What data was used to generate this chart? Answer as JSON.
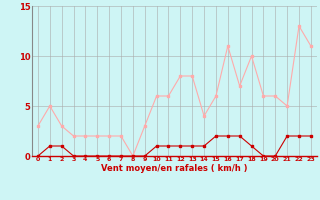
{
  "x": [
    0,
    1,
    2,
    3,
    4,
    5,
    6,
    7,
    8,
    9,
    10,
    11,
    12,
    13,
    14,
    15,
    16,
    17,
    18,
    19,
    20,
    21,
    22,
    23
  ],
  "wind_avg": [
    0,
    1,
    1,
    0,
    0,
    0,
    0,
    0,
    0,
    0,
    1,
    1,
    1,
    1,
    1,
    2,
    2,
    2,
    1,
    0,
    0,
    2,
    2,
    2
  ],
  "wind_gust": [
    3,
    5,
    3,
    2,
    2,
    2,
    2,
    2,
    0,
    3,
    6,
    6,
    8,
    8,
    4,
    6,
    11,
    7,
    10,
    6,
    6,
    5,
    13,
    11
  ],
  "line_avg_color": "#cc0000",
  "line_gust_color": "#ffaaaa",
  "bg_color": "#cef5f5",
  "grid_color": "#aaaaaa",
  "xlabel": "Vent moyen/en rafales ( km/h )",
  "xlabel_color": "#cc0000",
  "tick_color": "#cc0000",
  "ylabel_ticks": [
    0,
    5,
    10,
    15
  ],
  "ylim": [
    0,
    15
  ],
  "xlim": [
    -0.5,
    23.5
  ]
}
